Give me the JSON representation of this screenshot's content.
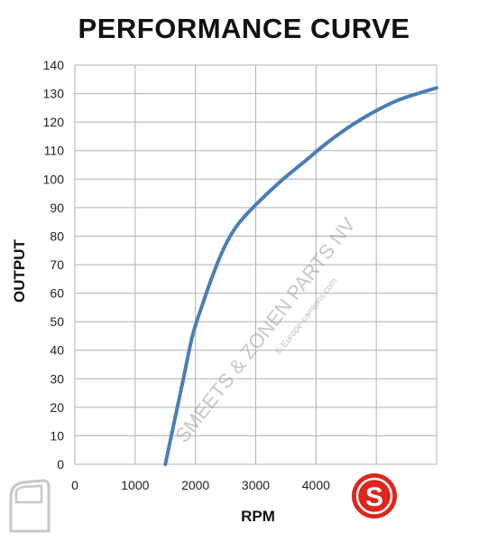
{
  "chart_data": {
    "type": "line",
    "title": "PERFORMANCE CURVE",
    "xlabel": "RPM",
    "ylabel": "OUTPUT",
    "xlim": [
      0,
      6000
    ],
    "ylim": [
      0,
      140
    ],
    "x_ticks": [
      0,
      1000,
      2000,
      3000,
      4000
    ],
    "y_ticks": [
      0,
      10,
      20,
      30,
      40,
      50,
      60,
      70,
      80,
      90,
      100,
      110,
      120,
      130,
      140
    ],
    "grid": true,
    "series": [
      {
        "color": "#4a7fb5",
        "x": [
          1500,
          1650,
          1800,
          1950,
          2100,
          2300,
          2500,
          2700,
          3000,
          3400,
          3800,
          4200,
          4600,
          5000,
          5400,
          6000
        ],
        "y": [
          0,
          15,
          30,
          45,
          55,
          67,
          77,
          84,
          91,
          99,
          106,
          113,
          119,
          124,
          128,
          132
        ]
      }
    ]
  },
  "watermark": {
    "text": "SMEETS & ZONEN PARTS NV",
    "url": "© Europe-camions.com"
  },
  "logo": {
    "letter": "S",
    "color": "#e0251b"
  }
}
